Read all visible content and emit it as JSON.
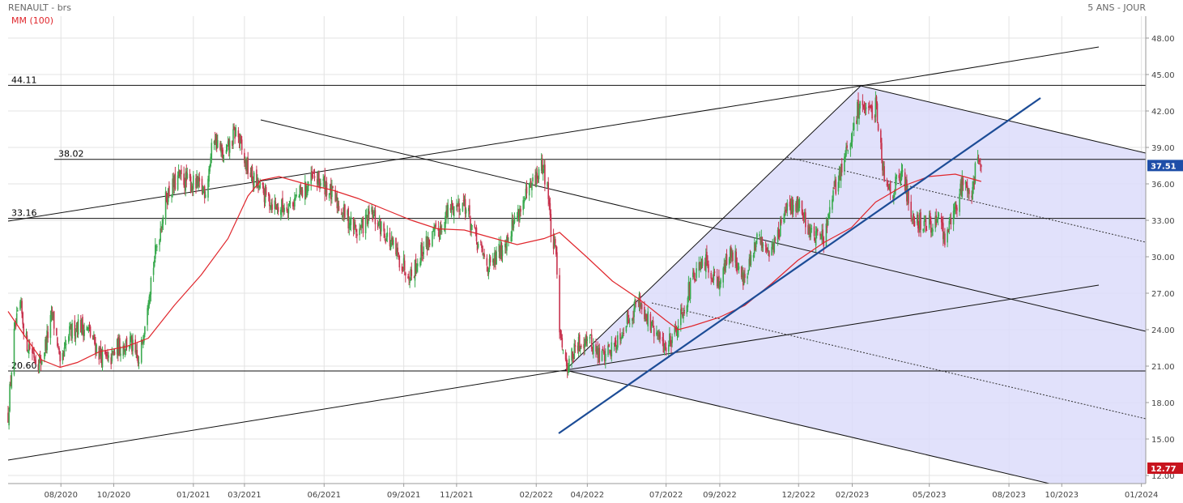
{
  "header": {
    "title": "RENAULT - brs",
    "indicator": "MM (100)",
    "period": "5 ANS - JOUR"
  },
  "colors": {
    "up": "#3aaa4f",
    "down": "#c8344f",
    "ma": "#e0262c",
    "fill": "#dcdcfa",
    "trend": "#1c4c96",
    "last_tag": "#1e4ea8",
    "low_tag": "#c8141e"
  },
  "chart_data": {
    "type": "candlestick",
    "ylim": [
      12,
      49.5
    ],
    "y_ticks": [
      "48.00",
      "45.00",
      "42.00",
      "39.00",
      "36.00",
      "33.00",
      "30.00",
      "27.00",
      "24.00",
      "21.00",
      "18.00",
      "15.00",
      "12.00"
    ],
    "x_ticks": [
      "08/2020",
      "10/2020",
      "01/2021",
      "03/2021",
      "06/2021",
      "09/2021",
      "11/2021",
      "02/2022",
      "04/2022",
      "07/2022",
      "09/2022",
      "12/2022",
      "02/2023",
      "05/2023",
      "08/2023",
      "10/2023",
      "01/2024"
    ],
    "x_tick_dates": [
      "2020-08-01",
      "2020-10-01",
      "2021-01-01",
      "2021-03-01",
      "2021-06-01",
      "2021-09-01",
      "2021-11-01",
      "2022-02-01",
      "2022-04-01",
      "2022-07-01",
      "2022-09-01",
      "2022-12-01",
      "2023-02-01",
      "2023-05-01",
      "2023-08-01",
      "2023-10-01",
      "2024-01-01"
    ],
    "levels": [
      {
        "label": "44.11",
        "value": 44.11
      },
      {
        "label": "38.02",
        "value": 38.02
      },
      {
        "label": "33.16",
        "value": 33.16
      },
      {
        "label": "20.60",
        "value": 20.6
      }
    ],
    "last_price": {
      "label": "37.51",
      "value": 37.51
    },
    "low_marker": {
      "label": "12.77",
      "value": 12.77
    },
    "price_path": [
      [
        "2020-06-01",
        17.0
      ],
      [
        "2020-06-08",
        23.5
      ],
      [
        "2020-06-15",
        26.0
      ],
      [
        "2020-06-22",
        23.0
      ],
      [
        "2020-07-01",
        22.0
      ],
      [
        "2020-07-08",
        21.2
      ],
      [
        "2020-07-15",
        23.0
      ],
      [
        "2020-07-22",
        25.2
      ],
      [
        "2020-07-28",
        23.0
      ],
      [
        "2020-07-31",
        20.6
      ],
      [
        "2020-08-10",
        23.5
      ],
      [
        "2020-08-20",
        24.5
      ],
      [
        "2020-09-01",
        24.0
      ],
      [
        "2020-09-15",
        22.0
      ],
      [
        "2020-09-25",
        21.3
      ],
      [
        "2020-10-05",
        22.5
      ],
      [
        "2020-10-20",
        23.0
      ],
      [
        "2020-10-30",
        21.0
      ],
      [
        "2020-11-10",
        27.0
      ],
      [
        "2020-11-20",
        31.0
      ],
      [
        "2020-12-01",
        35.0
      ],
      [
        "2020-12-15",
        36.5
      ],
      [
        "2020-12-31",
        36.0
      ],
      [
        "2021-01-15",
        35.5
      ],
      [
        "2021-01-25",
        40.0
      ],
      [
        "2021-02-05",
        38.0
      ],
      [
        "2021-02-20",
        40.5
      ],
      [
        "2021-02-28",
        38.0
      ],
      [
        "2021-03-10",
        36.5
      ],
      [
        "2021-03-25",
        35.0
      ],
      [
        "2021-04-10",
        34.0
      ],
      [
        "2021-04-25",
        34.5
      ],
      [
        "2021-05-10",
        35.5
      ],
      [
        "2021-05-20",
        36.5
      ],
      [
        "2021-06-01",
        36.0
      ],
      [
        "2021-06-20",
        34.0
      ],
      [
        "2021-07-10",
        32.0
      ],
      [
        "2021-07-25",
        33.5
      ],
      [
        "2021-08-10",
        32.0
      ],
      [
        "2021-08-25",
        30.0
      ],
      [
        "2021-09-10",
        28.5
      ],
      [
        "2021-09-25",
        31.0
      ],
      [
        "2021-10-10",
        32.0
      ],
      [
        "2021-10-25",
        34.0
      ],
      [
        "2021-11-10",
        34.5
      ],
      [
        "2021-11-25",
        31.0
      ],
      [
        "2021-12-10",
        29.0
      ],
      [
        "2021-12-25",
        31.0
      ],
      [
        "2022-01-10",
        33.5
      ],
      [
        "2022-01-25",
        35.5
      ],
      [
        "2022-02-08",
        37.5
      ],
      [
        "2022-02-14",
        36.0
      ],
      [
        "2022-02-18",
        32.0
      ],
      [
        "2022-02-24",
        30.0
      ],
      [
        "2022-02-28",
        24.5
      ],
      [
        "2022-03-07",
        21.0
      ],
      [
        "2022-03-20",
        22.5
      ],
      [
        "2022-03-31",
        23.5
      ],
      [
        "2022-04-15",
        21.8
      ],
      [
        "2022-04-30",
        22.5
      ],
      [
        "2022-05-15",
        24.5
      ],
      [
        "2022-05-31",
        26.5
      ],
      [
        "2022-06-15",
        24.0
      ],
      [
        "2022-06-30",
        22.5
      ],
      [
        "2022-07-15",
        24.5
      ],
      [
        "2022-07-31",
        28.0
      ],
      [
        "2022-08-15",
        29.5
      ],
      [
        "2022-08-31",
        28.0
      ],
      [
        "2022-09-15",
        30.5
      ],
      [
        "2022-09-30",
        28.0
      ],
      [
        "2022-10-15",
        31.5
      ],
      [
        "2022-10-31",
        30.5
      ],
      [
        "2022-11-15",
        33.5
      ],
      [
        "2022-11-30",
        34.5
      ],
      [
        "2022-12-15",
        32.0
      ],
      [
        "2022-12-31",
        31.5
      ],
      [
        "2023-01-10",
        35.0
      ],
      [
        "2023-01-20",
        37.5
      ],
      [
        "2023-01-31",
        39.5
      ],
      [
        "2023-02-10",
        43.0
      ],
      [
        "2023-02-20",
        41.5
      ],
      [
        "2023-03-01",
        42.5
      ],
      [
        "2023-03-10",
        36.5
      ],
      [
        "2023-03-20",
        35.5
      ],
      [
        "2023-03-31",
        37.0
      ],
      [
        "2023-04-10",
        33.5
      ],
      [
        "2023-04-25",
        32.5
      ],
      [
        "2023-05-10",
        33.0
      ],
      [
        "2023-05-20",
        31.5
      ],
      [
        "2023-05-31",
        34.0
      ],
      [
        "2023-06-10",
        36.5
      ],
      [
        "2023-06-20",
        35.5
      ],
      [
        "2023-06-25",
        38.5
      ],
      [
        "2023-06-30",
        37.51
      ]
    ],
    "moving_average": [
      [
        "2020-06-01",
        25.5
      ],
      [
        "2020-06-20",
        23.5
      ],
      [
        "2020-07-10",
        21.5
      ],
      [
        "2020-07-31",
        20.9
      ],
      [
        "2020-08-20",
        21.3
      ],
      [
        "2020-09-15",
        22.2
      ],
      [
        "2020-10-15",
        22.6
      ],
      [
        "2020-11-10",
        23.3
      ],
      [
        "2020-12-10",
        26.0
      ],
      [
        "2021-01-10",
        28.5
      ],
      [
        "2021-02-10",
        31.5
      ],
      [
        "2021-03-05",
        35.0
      ],
      [
        "2021-03-20",
        36.3
      ],
      [
        "2021-04-10",
        36.6
      ],
      [
        "2021-05-10",
        36.0
      ],
      [
        "2021-06-10",
        35.5
      ],
      [
        "2021-07-10",
        34.8
      ],
      [
        "2021-08-10",
        33.9
      ],
      [
        "2021-09-10",
        33.0
      ],
      [
        "2021-10-10",
        32.3
      ],
      [
        "2021-11-10",
        32.2
      ],
      [
        "2021-12-10",
        31.6
      ],
      [
        "2022-01-10",
        31.0
      ],
      [
        "2022-02-10",
        31.5
      ],
      [
        "2022-02-28",
        32.0
      ],
      [
        "2022-03-31",
        30.0
      ],
      [
        "2022-04-30",
        28.0
      ],
      [
        "2022-05-31",
        26.5
      ],
      [
        "2022-06-30",
        24.8
      ],
      [
        "2022-07-15",
        24.0
      ],
      [
        "2022-07-31",
        24.3
      ],
      [
        "2022-08-31",
        25.0
      ],
      [
        "2022-09-30",
        26.0
      ],
      [
        "2022-10-31",
        27.8
      ],
      [
        "2022-11-30",
        29.7
      ],
      [
        "2022-12-31",
        31.2
      ],
      [
        "2023-01-31",
        32.4
      ],
      [
        "2023-02-28",
        34.5
      ],
      [
        "2023-03-31",
        35.8
      ],
      [
        "2023-04-30",
        36.6
      ],
      [
        "2023-05-31",
        36.8
      ],
      [
        "2023-06-30",
        36.2
      ]
    ]
  }
}
